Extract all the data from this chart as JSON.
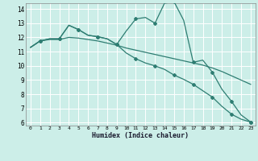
{
  "xlabel": "Humidex (Indice chaleur)",
  "background_color": "#cceee8",
  "grid_color": "#ffffff",
  "line_color": "#2e7d72",
  "xlim": [
    -0.5,
    23.5
  ],
  "ylim": [
    5.8,
    14.4
  ],
  "yticks": [
    6,
    7,
    8,
    9,
    10,
    11,
    12,
    13,
    14
  ],
  "xticks": [
    0,
    1,
    2,
    3,
    4,
    5,
    6,
    7,
    8,
    9,
    10,
    11,
    12,
    13,
    14,
    15,
    16,
    17,
    18,
    19,
    20,
    21,
    22,
    23
  ],
  "line1_x": [
    0,
    1,
    2,
    3,
    4,
    5,
    6,
    7,
    8,
    9,
    10,
    11,
    12,
    13,
    14,
    15,
    16,
    17,
    18,
    19,
    20,
    21,
    22,
    23
  ],
  "line1_y": [
    11.3,
    11.75,
    11.85,
    11.85,
    12.0,
    11.95,
    11.85,
    11.75,
    11.6,
    11.45,
    11.25,
    11.1,
    10.95,
    10.8,
    10.65,
    10.5,
    10.35,
    10.2,
    10.05,
    9.85,
    9.6,
    9.3,
    9.0,
    8.7
  ],
  "line2_x": [
    0,
    1,
    2,
    3,
    4,
    5,
    6,
    7,
    8,
    9,
    10,
    11,
    12,
    13,
    14,
    15,
    16,
    17,
    18,
    19,
    20,
    21,
    22,
    23
  ],
  "line2_y": [
    11.3,
    11.75,
    11.9,
    11.9,
    12.85,
    12.55,
    12.15,
    12.05,
    11.9,
    11.5,
    12.45,
    13.3,
    13.4,
    13.0,
    14.4,
    14.5,
    13.2,
    10.25,
    10.4,
    9.55,
    8.35,
    7.5,
    6.55,
    6.05
  ],
  "line3_x": [
    0,
    1,
    2,
    3,
    4,
    5,
    6,
    7,
    8,
    9,
    10,
    11,
    12,
    13,
    14,
    15,
    16,
    17,
    18,
    19,
    20,
    21,
    22,
    23
  ],
  "line3_y": [
    11.3,
    11.75,
    11.9,
    11.9,
    12.85,
    12.55,
    12.15,
    12.05,
    11.9,
    11.5,
    10.9,
    10.5,
    10.2,
    10.0,
    9.75,
    9.35,
    9.05,
    8.7,
    8.25,
    7.8,
    7.15,
    6.6,
    6.25,
    6.05
  ]
}
